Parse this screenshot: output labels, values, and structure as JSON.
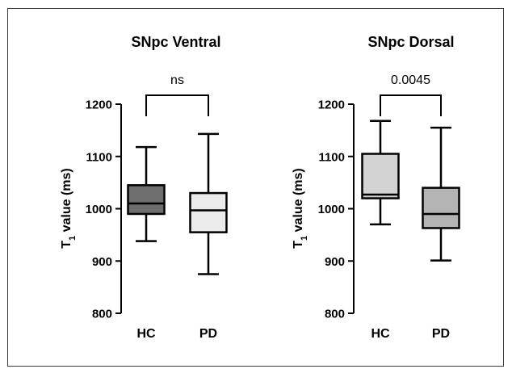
{
  "chart_data": [
    {
      "type": "box",
      "title": "SNpc Ventral",
      "ylabel": "T",
      "ylabel_sub": "1",
      "ylabel_rest": " value (ms)",
      "ylim": [
        800,
        1200
      ],
      "yticks": [
        "800",
        "900",
        "1000",
        "1100",
        "1200"
      ],
      "ytick_values": [
        800,
        900,
        1000,
        1100,
        1200
      ],
      "categories": [
        "HC",
        "PD"
      ],
      "boxes": [
        {
          "group": "HC",
          "min": 938,
          "q1": 990,
          "median": 1010,
          "q3": 1045,
          "max": 1118,
          "color": "#6e6e6e"
        },
        {
          "group": "PD",
          "min": 875,
          "q1": 955,
          "median": 997,
          "q3": 1030,
          "max": 1143,
          "color": "#ebebeb"
        }
      ],
      "comparison": {
        "label": "ns"
      }
    },
    {
      "type": "box",
      "title": "SNpc Dorsal",
      "ylabel": "T",
      "ylabel_sub": "1",
      "ylabel_rest": " value (ms)",
      "ylim": [
        800,
        1200
      ],
      "yticks": [
        "800",
        "900",
        "1000",
        "1100",
        "1200"
      ],
      "ytick_values": [
        800,
        900,
        1000,
        1100,
        1200
      ],
      "categories": [
        "HC",
        "PD"
      ],
      "boxes": [
        {
          "group": "HC",
          "min": 970,
          "q1": 1020,
          "median": 1027,
          "q3": 1105,
          "max": 1168,
          "color": "#d2d2d2"
        },
        {
          "group": "PD",
          "min": 901,
          "q1": 963,
          "median": 990,
          "q3": 1040,
          "max": 1155,
          "color": "#b4b4b4"
        }
      ],
      "comparison": {
        "label": "0.0045"
      }
    }
  ]
}
